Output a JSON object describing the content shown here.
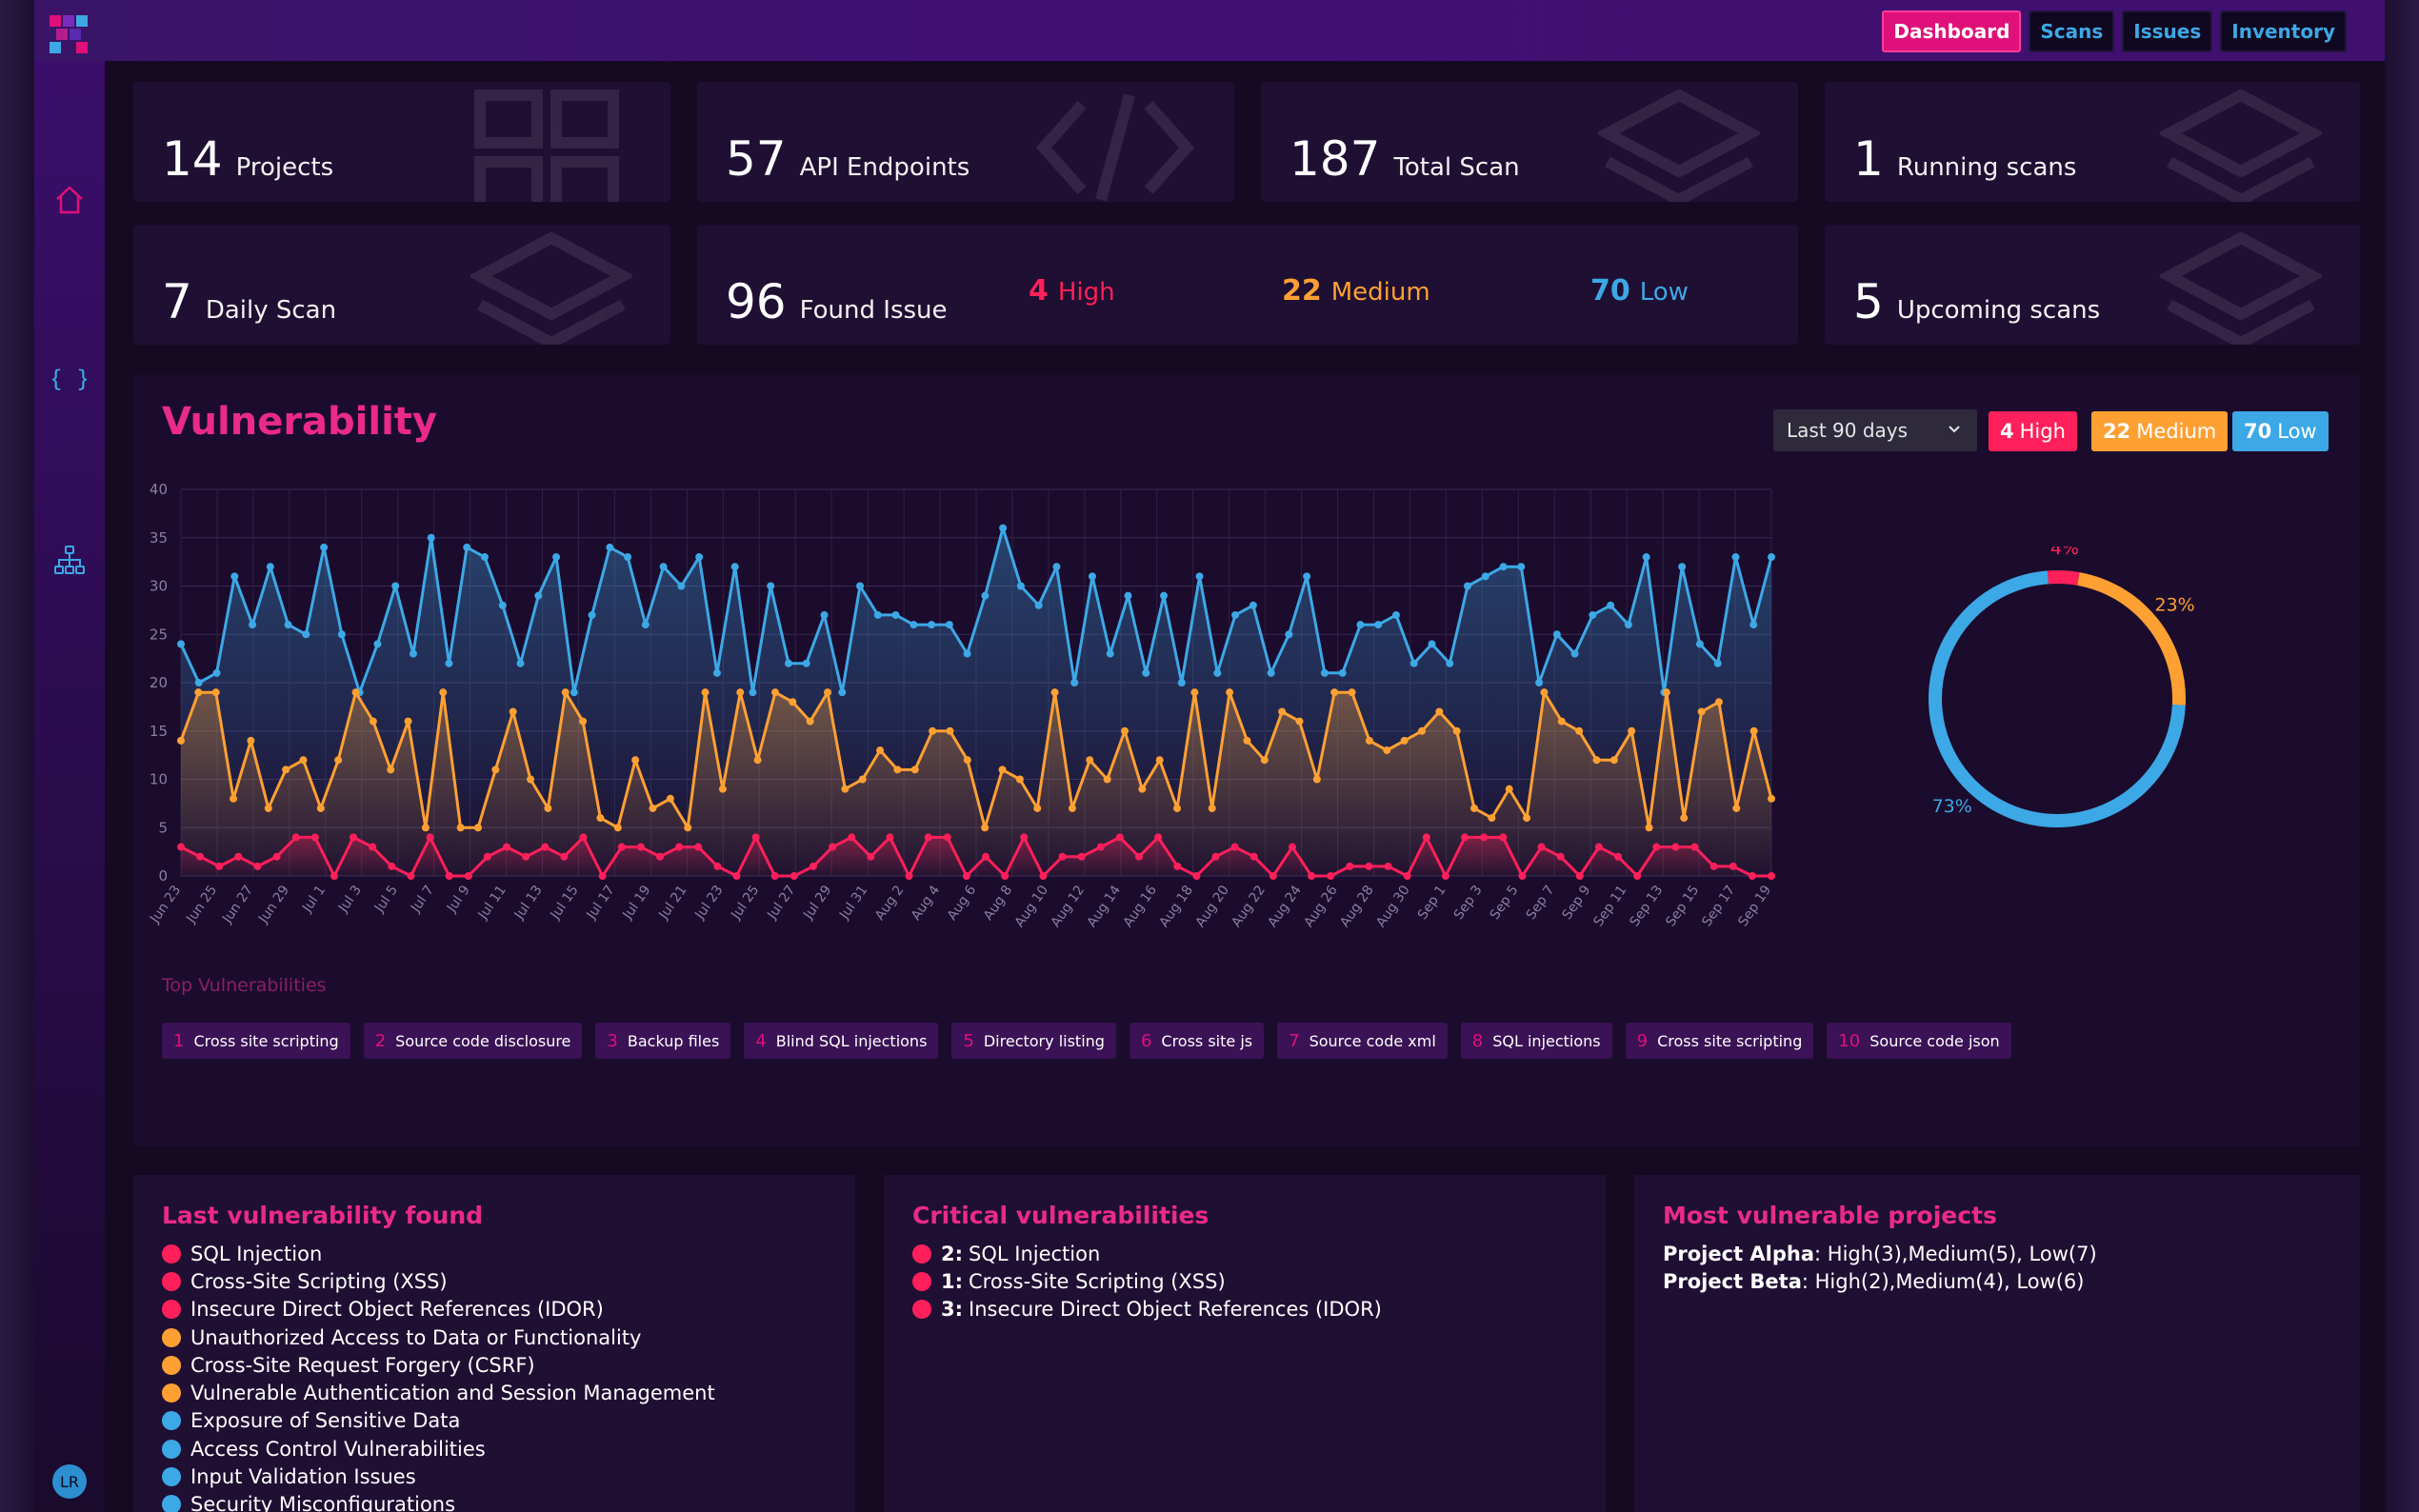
{
  "app": {
    "nav": [
      {
        "label": "Dashboard",
        "active": true
      },
      {
        "label": "Scans",
        "active": false
      },
      {
        "label": "Issues",
        "active": false
      },
      {
        "label": "Inventory",
        "active": false
      }
    ],
    "sidebar": [
      "home-icon",
      "code-braces-icon",
      "sitemap-icon"
    ],
    "user_initials": "LR"
  },
  "colors": {
    "high": "#ff1f5a",
    "medium": "#ffa033",
    "low": "#3da8e6",
    "accent": "#e0107a"
  },
  "stats": {
    "projects": {
      "num": "14",
      "label": "Projects"
    },
    "api": {
      "num": "57",
      "label": "API Endpoints"
    },
    "total": {
      "num": "187",
      "label": "Total Scan"
    },
    "running": {
      "num": "1",
      "label": "Running scans"
    },
    "daily": {
      "num": "7",
      "label": "Daily Scan"
    },
    "found": {
      "num": "96",
      "label": "Found Issue"
    },
    "upcoming": {
      "num": "5",
      "label": "Upcoming scans"
    },
    "high": {
      "num": "4",
      "label": "High"
    },
    "medium": {
      "num": "22",
      "label": "Medium"
    },
    "low": {
      "num": "70",
      "label": "Low"
    }
  },
  "vulnerability": {
    "title": "Vulnerability",
    "range": "Last 90 days",
    "pills": {
      "high_n": "4",
      "high_l": "High",
      "med_n": "22",
      "med_l": "Medium",
      "low_n": "70",
      "low_l": "Low"
    },
    "top_title": "Top Vulnerabilities",
    "top": [
      {
        "rank": "1",
        "name": "Cross site scripting"
      },
      {
        "rank": "2",
        "name": "Source code disclosure"
      },
      {
        "rank": "3",
        "name": "Backup files"
      },
      {
        "rank": "4",
        "name": "Blind SQL injections"
      },
      {
        "rank": "5",
        "name": "Directory listing"
      },
      {
        "rank": "6",
        "name": "Cross site js"
      },
      {
        "rank": "7",
        "name": "Source code xml"
      },
      {
        "rank": "8",
        "name": "SQL injections"
      },
      {
        "rank": "9",
        "name": "Cross site scripting"
      },
      {
        "rank": "10",
        "name": "Source code json"
      }
    ]
  },
  "chart_data": [
    {
      "type": "line",
      "x_tick_labels": [
        "Jun 23",
        "Jun 25",
        "Jun 27",
        "Jun 29",
        "Jul 1",
        "Jul 3",
        "Jul 5",
        "Jul 7",
        "Jul 9",
        "Jul 11",
        "Jul 13",
        "Jul 15",
        "Jul 17",
        "Jul 19",
        "Jul 21",
        "Jul 23",
        "Jul 25",
        "Jul 27",
        "Jul 29",
        "Jul 31",
        "Aug 2",
        "Aug 4",
        "Aug 6",
        "Aug 8",
        "Aug 10",
        "Aug 12",
        "Aug 14",
        "Aug 16",
        "Aug 18",
        "Aug 20",
        "Aug 22",
        "Aug 24",
        "Aug 26",
        "Aug 28",
        "Aug 30",
        "Sep 1",
        "Sep 3",
        "Sep 5",
        "Sep 7",
        "Sep 9",
        "Sep 11",
        "Sep 13",
        "Sep 15",
        "Sep 17",
        "Sep 19"
      ],
      "ylim": [
        0,
        40
      ],
      "yticks": [
        0,
        5,
        10,
        15,
        20,
        25,
        30,
        35,
        40
      ],
      "grid": true,
      "series": [
        {
          "color": "#3da8e6",
          "values": [
            24,
            20,
            21,
            31,
            26,
            32,
            26,
            25,
            34,
            25,
            19,
            24,
            30,
            23,
            35,
            22,
            34,
            33,
            28,
            22,
            29,
            33,
            19,
            27,
            34,
            33,
            26,
            32,
            30,
            33,
            21,
            32,
            19,
            30,
            22,
            22,
            27,
            19,
            30,
            27,
            27,
            26,
            26,
            26,
            23,
            29,
            36,
            30,
            28,
            32,
            20,
            31,
            23,
            29,
            21,
            29,
            20,
            31,
            21,
            27,
            28,
            21,
            25,
            31,
            21,
            21,
            26,
            26,
            27,
            22,
            24,
            22,
            30,
            31,
            32,
            32,
            20,
            25,
            23,
            27,
            28,
            26,
            33,
            19,
            32,
            24,
            22,
            33,
            26,
            33
          ]
        },
        {
          "color": "#ffa033",
          "values": [
            14,
            19,
            19,
            8,
            14,
            7,
            11,
            12,
            7,
            12,
            19,
            16,
            11,
            16,
            5,
            19,
            5,
            5,
            11,
            17,
            10,
            7,
            19,
            16,
            6,
            5,
            12,
            7,
            8,
            5,
            19,
            9,
            19,
            12,
            19,
            18,
            16,
            19,
            9,
            10,
            13,
            11,
            11,
            15,
            15,
            12,
            5,
            11,
            10,
            7,
            19,
            7,
            12,
            10,
            15,
            9,
            12,
            7,
            19,
            7,
            19,
            14,
            12,
            17,
            16,
            10,
            19,
            19,
            14,
            13,
            14,
            15,
            17,
            15,
            7,
            6,
            9,
            6,
            19,
            16,
            15,
            12,
            12,
            15,
            5,
            19,
            6,
            17,
            18,
            7,
            15,
            8
          ]
        },
        {
          "color": "#ff1f5a",
          "values": [
            3,
            2,
            1,
            2,
            1,
            2,
            4,
            4,
            0,
            4,
            3,
            1,
            0,
            4,
            0,
            0,
            2,
            3,
            2,
            3,
            2,
            4,
            0,
            3,
            3,
            2,
            3,
            3,
            1,
            0,
            4,
            0,
            0,
            1,
            3,
            4,
            2,
            4,
            0,
            4,
            4,
            0,
            2,
            0,
            4,
            0,
            2,
            2,
            3,
            4,
            2,
            4,
            1,
            0,
            2,
            3,
            2,
            0,
            3,
            0,
            0,
            1,
            1,
            1,
            0,
            4,
            0,
            4,
            4,
            4,
            0,
            3,
            2,
            0,
            3,
            2,
            0,
            3,
            3,
            3,
            1,
            1,
            0,
            0
          ]
        }
      ]
    },
    {
      "type": "pie",
      "labels": [
        "4%",
        "23%",
        "73%"
      ],
      "values": [
        4,
        23,
        73
      ],
      "colors": [
        "#ff1f5a",
        "#ffa033",
        "#3da8e6"
      ]
    }
  ],
  "panels": {
    "last": {
      "title": "Last vulnerability found",
      "items": [
        {
          "sev": "high",
          "text": "SQL Injection"
        },
        {
          "sev": "high",
          "text": "Cross-Site Scripting (XSS)"
        },
        {
          "sev": "high",
          "text": "Insecure Direct Object References (IDOR)"
        },
        {
          "sev": "medium",
          "text": "Unauthorized Access to Data or Functionality"
        },
        {
          "sev": "medium",
          "text": "Cross-Site Request Forgery (CSRF)"
        },
        {
          "sev": "medium",
          "text": "Vulnerable Authentication and Session Management"
        },
        {
          "sev": "low",
          "text": "Exposure of Sensitive Data"
        },
        {
          "sev": "low",
          "text": "Access Control Vulnerabilities"
        },
        {
          "sev": "low",
          "text": "Input Validation Issues"
        },
        {
          "sev": "low",
          "text": "Security Misconfigurations"
        }
      ]
    },
    "critical": {
      "title": "Critical vulnerabilities",
      "items": [
        {
          "count": "2:",
          "text": "SQL Injection"
        },
        {
          "count": "1:",
          "text": "Cross-Site Scripting (XSS)"
        },
        {
          "count": "3:",
          "text": "Insecure Direct Object References (IDOR)"
        }
      ]
    },
    "projects": {
      "title": "Most vulnerable projects",
      "items": [
        {
          "name": "Project Alpha",
          "detail": ": High(3),Medium(5), Low(7)"
        },
        {
          "name": "Project Beta",
          "detail": ": High(2),Medium(4), Low(6)"
        }
      ]
    }
  }
}
